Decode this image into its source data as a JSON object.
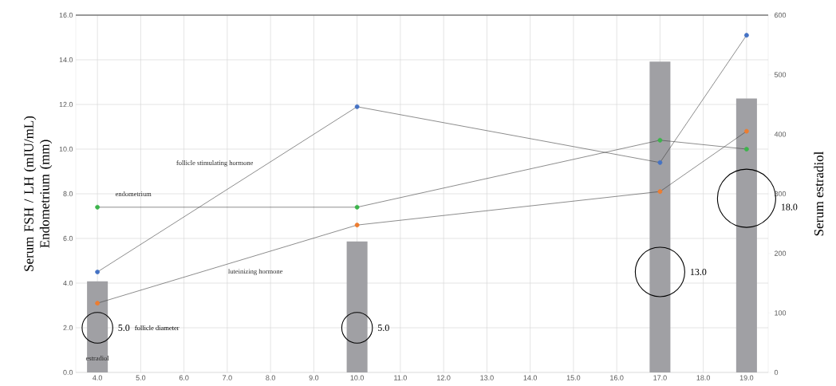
{
  "chart_data": {
    "type": "line",
    "ylabel": "Serum FSH / LH (mIU/mL) Endometrium (mm)",
    "y2label": "Serum estradiol",
    "grid": true,
    "marker": "circle",
    "xlim": [
      3.5,
      19.5
    ],
    "xticks": [
      {
        "value": 4,
        "label": "4.0"
      },
      {
        "value": 5,
        "label": "5.0"
      },
      {
        "value": 6,
        "label": "6.0"
      },
      {
        "value": 7,
        "label": "7.0"
      },
      {
        "value": 8,
        "label": "8.0"
      },
      {
        "value": 9,
        "label": "9.0"
      },
      {
        "value": 10,
        "label": "10.0"
      },
      {
        "value": 11,
        "label": "11.0"
      },
      {
        "value": 12,
        "label": "12.0"
      },
      {
        "value": 13,
        "label": "13.0"
      },
      {
        "value": 14,
        "label": "14.0"
      },
      {
        "value": 15,
        "label": "15.0"
      },
      {
        "value": 16,
        "label": "16.0"
      },
      {
        "value": 17,
        "label": "17.0"
      },
      {
        "value": 18,
        "label": "18.0"
      },
      {
        "value": 19,
        "label": "19.0"
      }
    ],
    "ylim": [
      0,
      16
    ],
    "yticks": [
      {
        "value": 0,
        "label": "0.0"
      },
      {
        "value": 2,
        "label": "2.0"
      },
      {
        "value": 4,
        "label": "4.0"
      },
      {
        "value": 6,
        "label": "6.0"
      },
      {
        "value": 8,
        "label": "8.0"
      },
      {
        "value": 10,
        "label": "10.0"
      },
      {
        "value": 12,
        "label": "12.0"
      },
      {
        "value": 14,
        "label": "14.0"
      },
      {
        "value": 16,
        "label": "16.0"
      }
    ],
    "y2lim": [
      0,
      600
    ],
    "y2ticks": [
      0,
      100,
      200,
      300,
      400,
      500,
      600
    ],
    "x": [
      4,
      10,
      17,
      19
    ],
    "series": [
      {
        "name": "estradiol",
        "type": "bar",
        "axis": "y2",
        "color": "#a0a0a4",
        "values": [
          153,
          220,
          522,
          460
        ]
      },
      {
        "name": "follicle stimulating hormone",
        "color": "#4472c4",
        "values": [
          4.5,
          11.9,
          9.4,
          15.1
        ]
      },
      {
        "name": "luteinizing hormone",
        "color": "#ed7d31",
        "values": [
          3.1,
          6.6,
          8.1,
          10.8
        ]
      },
      {
        "name": "endometrium",
        "color": "#3cb44b",
        "values": [
          7.4,
          7.4,
          10.4,
          10.0
        ]
      },
      {
        "name": "follicle diameter",
        "type": "bubble",
        "color": "#000000",
        "values": [
          2.0,
          2.0,
          4.5,
          7.8
        ],
        "sizes": [
          5,
          5,
          13,
          18
        ],
        "value_labels": [
          "5.0",
          "5.0",
          "13.0",
          "18.0"
        ]
      }
    ]
  }
}
